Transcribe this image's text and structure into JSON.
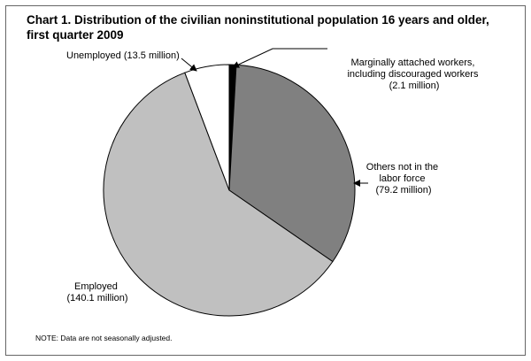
{
  "chart_data": {
    "type": "pie",
    "title_lines": [
      "Chart 1. Distribution of the civilian noninstitutional population 16 years and older,",
      "first quarter 2009"
    ],
    "slices": [
      {
        "key": "marginal",
        "value": 2.1,
        "color": "#000000",
        "label_lines": [
          "Marginally attached workers,",
          "including discouraged workers",
          "(2.1 million)"
        ]
      },
      {
        "key": "others",
        "value": 79.2,
        "color": "#808080",
        "label_lines": [
          "Others not in the",
          "labor force",
          "(79.2 million)"
        ]
      },
      {
        "key": "employed",
        "value": 140.1,
        "color": "#c0c0c0",
        "label_lines": [
          "Employed",
          "(140.1 million)"
        ]
      },
      {
        "key": "unemployed",
        "value": 13.5,
        "color": "#ffffff",
        "label_lines": [
          "Unemployed (13.5 million)"
        ]
      }
    ],
    "note": "NOTE:  Data are not seasonally adjusted."
  }
}
